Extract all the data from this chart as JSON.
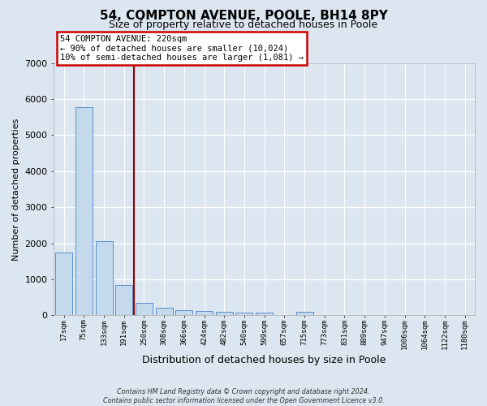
{
  "title": "54, COMPTON AVENUE, POOLE, BH14 8PY",
  "subtitle": "Size of property relative to detached houses in Poole",
  "xlabel": "Distribution of detached houses by size in Poole",
  "ylabel": "Number of detached properties",
  "bar_labels": [
    "17sqm",
    "75sqm",
    "133sqm",
    "191sqm",
    "250sqm",
    "308sqm",
    "366sqm",
    "424sqm",
    "482sqm",
    "540sqm",
    "599sqm",
    "657sqm",
    "715sqm",
    "773sqm",
    "831sqm",
    "889sqm",
    "947sqm",
    "1006sqm",
    "1064sqm",
    "1122sqm",
    "1180sqm"
  ],
  "bar_values": [
    1750,
    5780,
    2060,
    830,
    340,
    220,
    130,
    110,
    90,
    80,
    70,
    0,
    90,
    0,
    0,
    0,
    0,
    0,
    0,
    0,
    0
  ],
  "bar_color": "#c5d9ed",
  "bar_edge_color": "#5b8fc9",
  "fig_bg": "#dce6f0",
  "axes_bg": "#dce6f0",
  "grid_color": "#ffffff",
  "ylim": [
    0,
    7000
  ],
  "yticks": [
    0,
    1000,
    2000,
    3000,
    4000,
    5000,
    6000,
    7000
  ],
  "property_line_x": 3.5,
  "property_line_color": "#990000",
  "annotation_line1": "54 COMPTON AVENUE: 220sqm",
  "annotation_line2": "← 90% of detached houses are smaller (10,024)",
  "annotation_line3": "10% of semi-detached houses are larger (1,081) →",
  "ann_facecolor": "#ffffff",
  "ann_edgecolor": "#cc0000",
  "footer_line1": "Contains HM Land Registry data © Crown copyright and database right 2024.",
  "footer_line2": "Contains public sector information licensed under the Open Government Licence v3.0."
}
